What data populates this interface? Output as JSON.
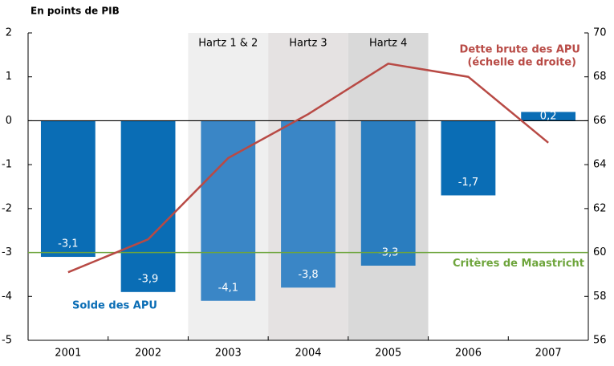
{
  "chart_data": {
    "type": "bar",
    "title": "En points de PIB",
    "categories": [
      "2001",
      "2002",
      "2003",
      "2004",
      "2005",
      "2006",
      "2007"
    ],
    "series": [
      {
        "name": "Solde des APU",
        "type": "bar",
        "color": "#0a6db5",
        "colors": [
          "#0a6db5",
          "#0a6db5",
          "#3a86c6",
          "#3a86c6",
          "#2a7dbf",
          "#0a6db5",
          "#0a6db5"
        ],
        "values": [
          -3.1,
          -3.9,
          -4.1,
          -3.8,
          -3.3,
          -1.7,
          0.2
        ],
        "value_labels": [
          "-3,1",
          "-3,9",
          "-4,1",
          "-3,8",
          "-3,3",
          "-1,7",
          "0,2"
        ]
      },
      {
        "name": "Dette brute des APU",
        "note": "(échelle de droite)",
        "type": "line",
        "axis": "y2",
        "color": "#b84a45",
        "values": [
          59.1,
          60.6,
          64.3,
          66.3,
          68.6,
          68.0,
          65.0
        ]
      }
    ],
    "periods": [
      {
        "label": "Hartz 1 & 2",
        "category": "2003",
        "color": "#efefef"
      },
      {
        "label": "Hartz 3",
        "category": "2004",
        "color": "#e5e2e2"
      },
      {
        "label": "Hartz 4",
        "category": "2005",
        "color": "#d9d9d9"
      }
    ],
    "reference_line": {
      "value": -3,
      "label": "Critères de Maastricht",
      "color": "#6ea53c"
    },
    "ylim": [
      -5,
      2
    ],
    "yticks": [
      -5,
      -4,
      -3,
      -2,
      -1,
      0,
      1,
      2
    ],
    "y2lim": [
      56,
      70
    ],
    "y2ticks": [
      56,
      58,
      60,
      62,
      64,
      66,
      68,
      70
    ],
    "grid": false
  }
}
